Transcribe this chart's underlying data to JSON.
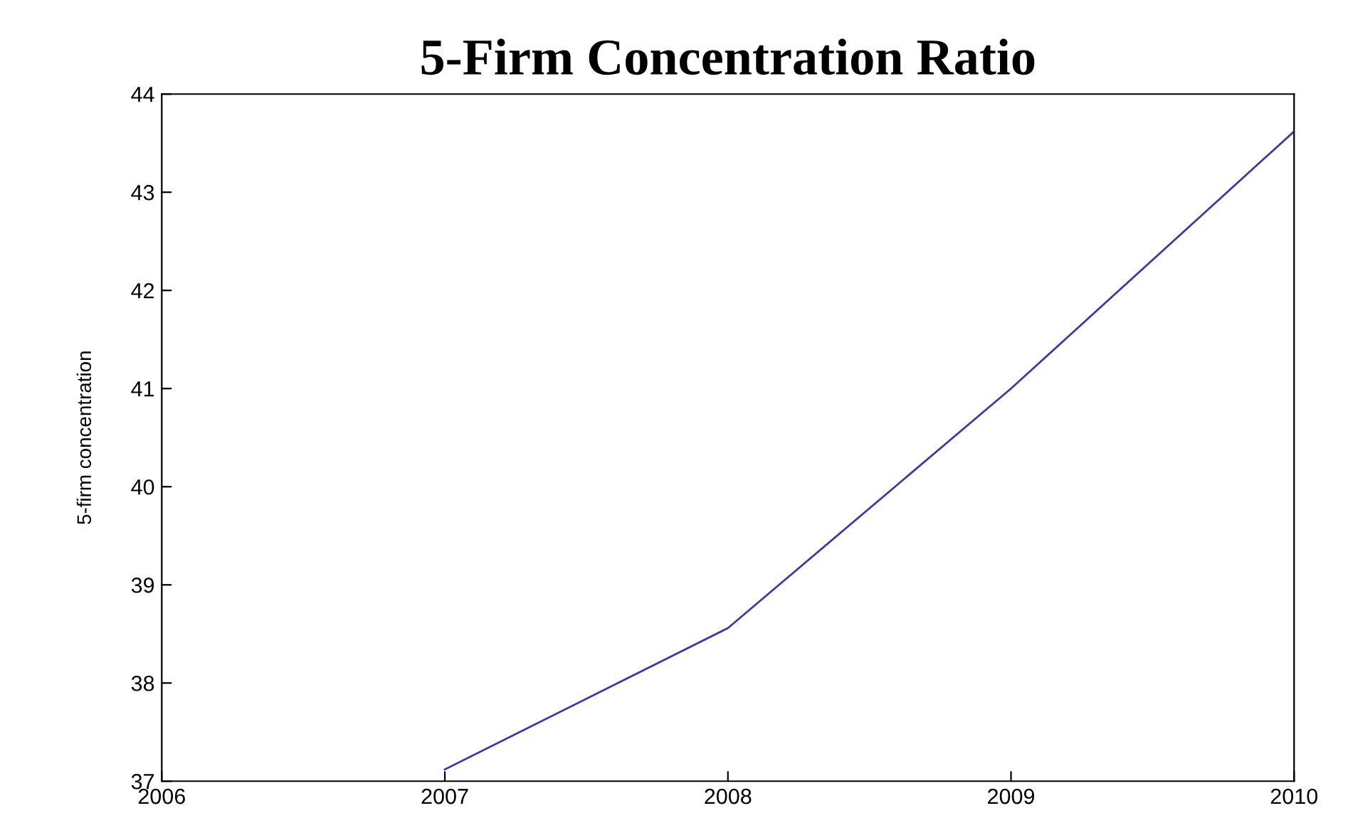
{
  "chart_data": {
    "type": "line",
    "title": "5-Firm Concentration Ratio",
    "ylabel": "5-firm concentration",
    "x": [
      2007,
      2008,
      2009,
      2010
    ],
    "series": [
      {
        "color": "#3a3aa8",
        "values": [
          37.12,
          38.56,
          41.0,
          43.62
        ]
      }
    ],
    "xlim": [
      2006,
      2010
    ],
    "xticks": [
      2006,
      2007,
      2008,
      2009,
      2010
    ],
    "ylim": [
      37,
      44
    ],
    "yticks": [
      37,
      38,
      39,
      40,
      41,
      42,
      43,
      44
    ],
    "grid": false,
    "legend": false,
    "marker": "none",
    "line_style": "solid"
  }
}
